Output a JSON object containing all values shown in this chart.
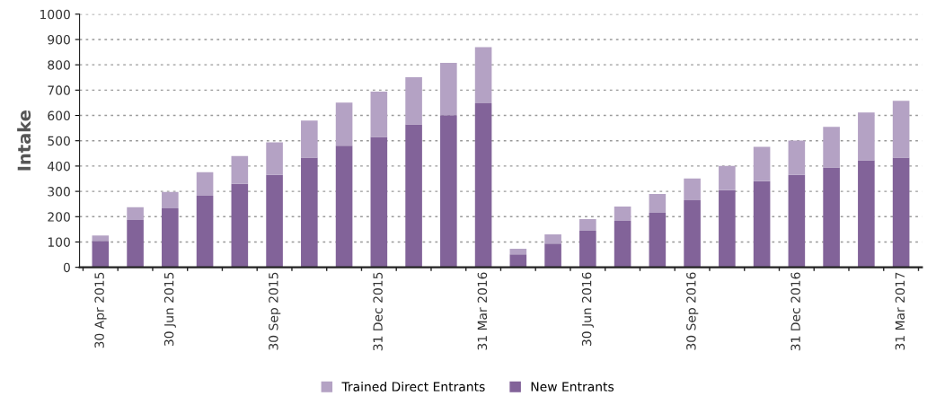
{
  "chart_data": {
    "type": "bar",
    "stacked": true,
    "ylabel": "Intake",
    "categories": [
      "30 Apr 2015",
      null,
      "30 Jun 2015",
      null,
      null,
      "30 Sep 2015",
      null,
      null,
      "31 Dec 2015",
      null,
      null,
      "31 Mar 2016",
      null,
      null,
      "30 Jun 2016",
      null,
      null,
      "30 Sep 2016",
      null,
      null,
      "31 Dec 2016",
      null,
      null,
      "31 Mar 2017"
    ],
    "series": [
      {
        "name": "New Entrants",
        "color": "#826399",
        "values": [
          104,
          187,
          233,
          283,
          330,
          365,
          433,
          480,
          515,
          565,
          601,
          648,
          51,
          94,
          144,
          183,
          215,
          265,
          305,
          340,
          365,
          394,
          423,
          433
        ]
      },
      {
        "name": "Trained Direct Entrants",
        "color": "#b4a2c4",
        "values": [
          22,
          50,
          65,
          93,
          110,
          129,
          147,
          171,
          179,
          186,
          207,
          222,
          22,
          36,
          46,
          57,
          75,
          86,
          96,
          136,
          136,
          161,
          189,
          225
        ]
      }
    ],
    "ylim": [
      0,
      1000
    ],
    "yticks": [
      0,
      100,
      200,
      300,
      400,
      500,
      600,
      700,
      800,
      900,
      1000
    ],
    "grid": "y",
    "legend": "bottom"
  }
}
